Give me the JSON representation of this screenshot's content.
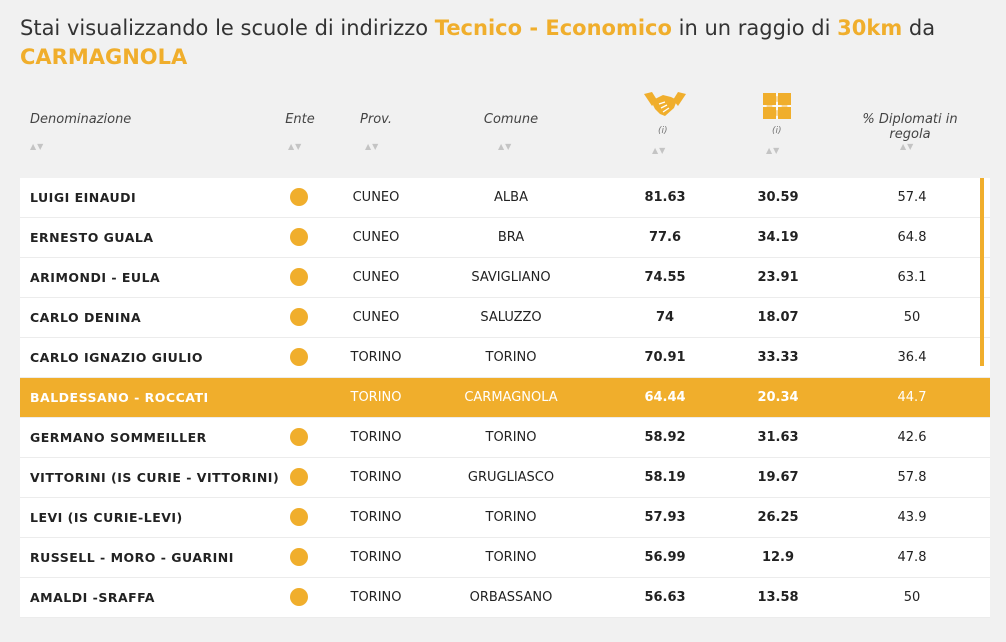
{
  "heading": {
    "prefix": "Stai visualizzando le scuole di indirizzo",
    "indirizzo": "Tecnico - Economico",
    "mid": "in un raggio di",
    "raggio": "30km",
    "suffix": "da",
    "citta": "CARMAGNOLA"
  },
  "columns": {
    "denominazione": "Denominazione",
    "ente": "Ente",
    "prov": "Prov.",
    "comune": "Comune",
    "info1": "(i)",
    "info2": "(i)",
    "diplomati": "% Diplomati in regola"
  },
  "colors": {
    "accent": "#f0ae2c"
  },
  "icons": {
    "col5": "handshake-icon",
    "col6": "puzzle-icon",
    "ente": "dot-icon"
  },
  "rows": [
    {
      "name": "LUIGI EINAUDI",
      "prov": "CUNEO",
      "comune": "ALBA",
      "v1": "81.63",
      "v2": "30.59",
      "v3": "57.4",
      "active": false
    },
    {
      "name": "ERNESTO GUALA",
      "prov": "CUNEO",
      "comune": "BRA",
      "v1": "77.6",
      "v2": "34.19",
      "v3": "64.8",
      "active": false
    },
    {
      "name": "ARIMONDI - EULA",
      "prov": "CUNEO",
      "comune": "SAVIGLIANO",
      "v1": "74.55",
      "v2": "23.91",
      "v3": "63.1",
      "active": false
    },
    {
      "name": "CARLO DENINA",
      "prov": "CUNEO",
      "comune": "SALUZZO",
      "v1": "74",
      "v2": "18.07",
      "v3": "50",
      "active": false
    },
    {
      "name": "CARLO IGNAZIO GIULIO",
      "prov": "TORINO",
      "comune": "TORINO",
      "v1": "70.91",
      "v2": "33.33",
      "v3": "36.4",
      "active": false
    },
    {
      "name": "BALDESSANO - ROCCATI",
      "prov": "TORINO",
      "comune": "CARMAGNOLA",
      "v1": "64.44",
      "v2": "20.34",
      "v3": "44.7",
      "active": true
    },
    {
      "name": "GERMANO SOMMEILLER",
      "prov": "TORINO",
      "comune": "TORINO",
      "v1": "58.92",
      "v2": "31.63",
      "v3": "42.6",
      "active": false
    },
    {
      "name": "VITTORINI (IS CURIE - VITTORINI)",
      "prov": "TORINO",
      "comune": "GRUGLIASCO",
      "v1": "58.19",
      "v2": "19.67",
      "v3": "57.8",
      "active": false
    },
    {
      "name": "LEVI (IS CURIE-LEVI)",
      "prov": "TORINO",
      "comune": "TORINO",
      "v1": "57.93",
      "v2": "26.25",
      "v3": "43.9",
      "active": false
    },
    {
      "name": "RUSSELL - MORO - GUARINI",
      "prov": "TORINO",
      "comune": "TORINO",
      "v1": "56.99",
      "v2": "12.9",
      "v3": "47.8",
      "active": false
    },
    {
      "name": "AMALDI -SRAFFA",
      "prov": "TORINO",
      "comune": "ORBASSANO",
      "v1": "56.63",
      "v2": "13.58",
      "v3": "50",
      "active": false
    }
  ]
}
